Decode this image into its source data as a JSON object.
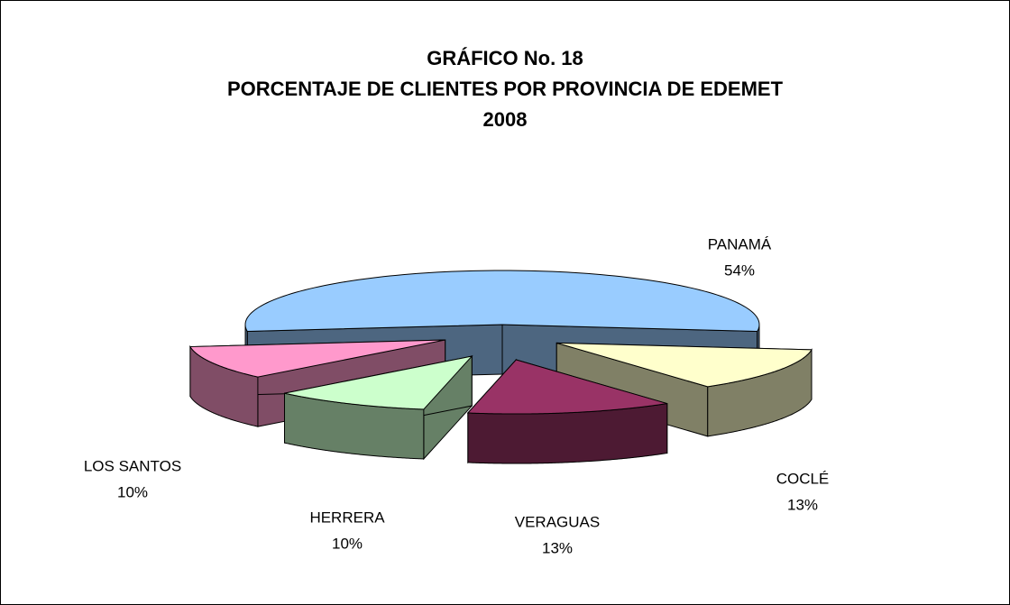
{
  "chart_data": {
    "type": "pie3d",
    "title": [
      "GRÁFICO No.  18",
      "PORCENTAJE DE CLIENTES POR PROVINCIA DE EDEMET",
      "2008"
    ],
    "categories": [
      "PANAMÁ",
      "COCLÉ",
      "VERAGUAS",
      "HERRERA",
      "LOS SANTOS"
    ],
    "values": [
      54,
      13,
      13,
      10,
      10
    ],
    "value_labels": [
      "54%",
      "13%",
      "13%",
      "10%",
      "10%"
    ],
    "colors": [
      "#99ccff",
      "#ffffcc",
      "#993366",
      "#ccffcc",
      "#ff99cc"
    ]
  }
}
